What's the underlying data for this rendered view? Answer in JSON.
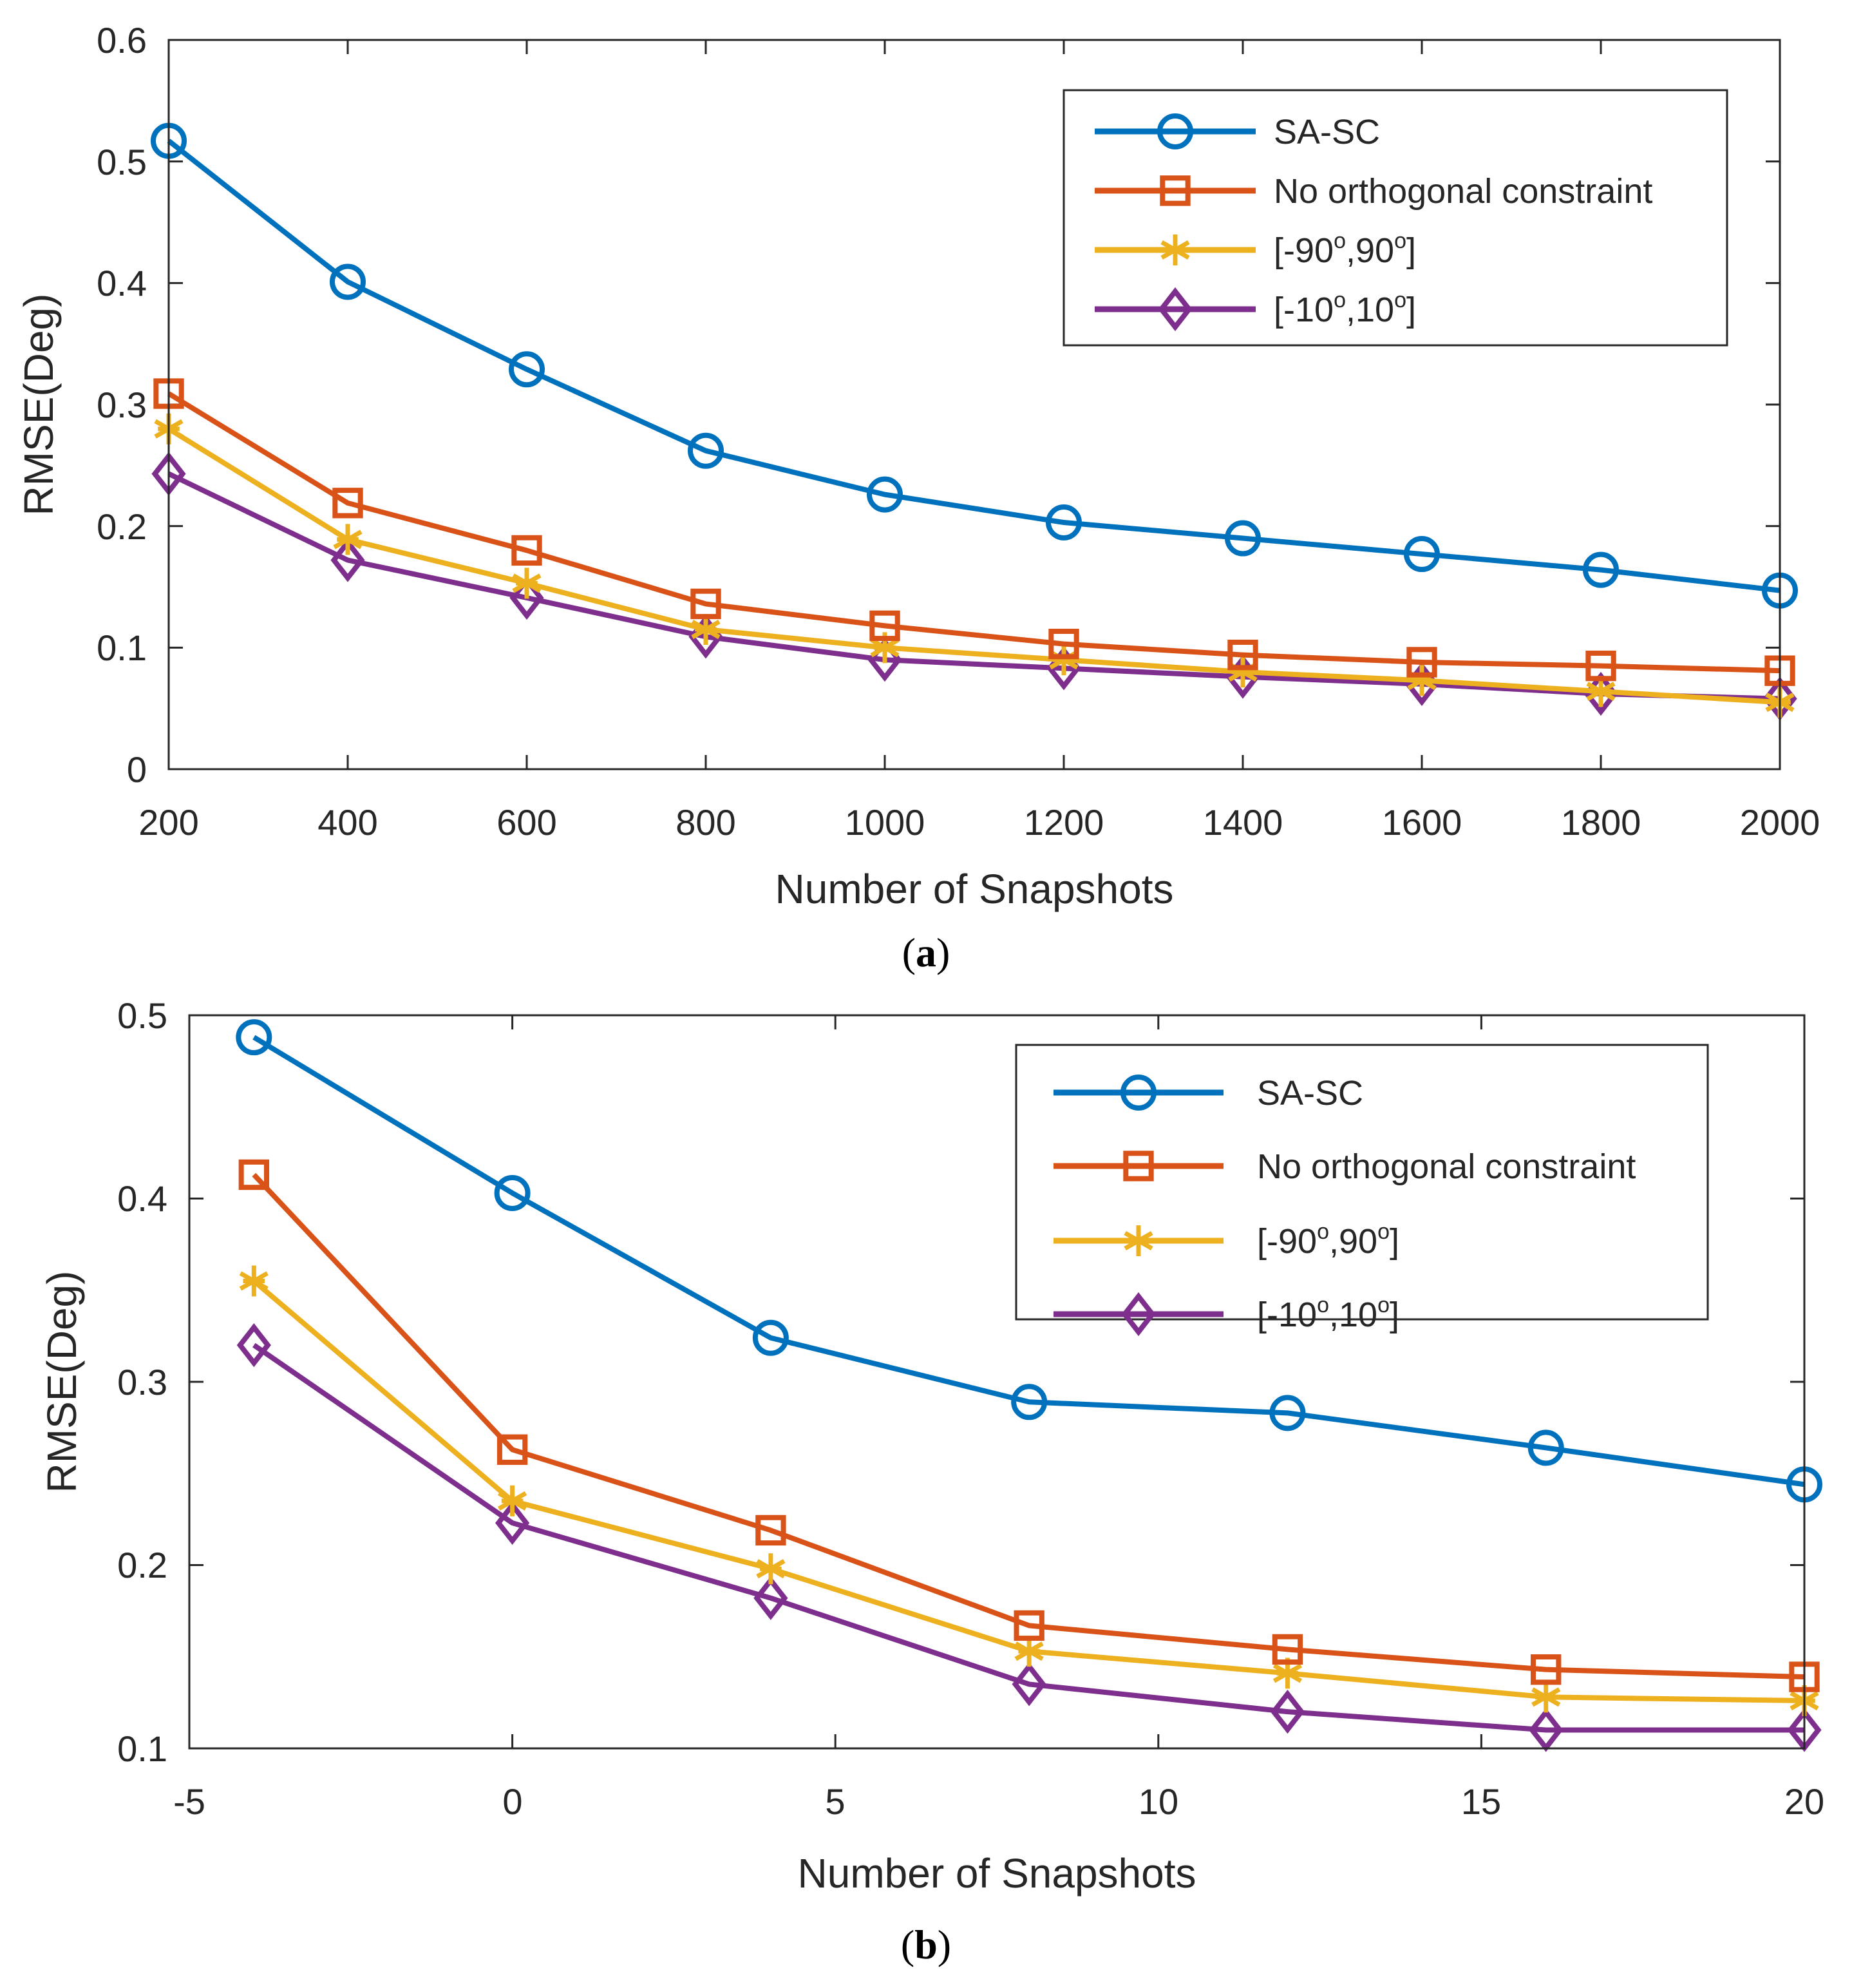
{
  "chart_data": [
    {
      "panel": "a",
      "type": "line",
      "caption": "(a)",
      "caption_letter": "a",
      "xlabel": "Number of Snapshots",
      "ylabel": "RMSE(Deg)",
      "x": [
        200,
        400,
        600,
        800,
        1000,
        1200,
        1400,
        1600,
        1800,
        2000
      ],
      "xlim": [
        200,
        2000
      ],
      "ylim": [
        0,
        0.6
      ],
      "xticks": [
        200,
        400,
        600,
        800,
        1000,
        1200,
        1400,
        1600,
        1800,
        2000
      ],
      "yticks": [
        0,
        0.1,
        0.2,
        0.3,
        0.4,
        0.5,
        0.6
      ],
      "xtick_labels": [
        "200",
        "400",
        "600",
        "800",
        "1000",
        "1200",
        "1400",
        "1600",
        "1800",
        "2000"
      ],
      "ytick_labels": [
        "0",
        "0.1",
        "0.2",
        "0.3",
        "0.4",
        "0.5",
        "0.6"
      ],
      "legend_position": "top-right",
      "series": [
        {
          "name": "SA-SC",
          "legend": {
            "text": "SA-SC"
          },
          "color": "#0072BD",
          "marker": "circle",
          "values": [
            0.517,
            0.401,
            0.329,
            0.262,
            0.226,
            0.203,
            0.19,
            0.177,
            0.164,
            0.147
          ]
        },
        {
          "name": "No orthogonal constraint",
          "legend": {
            "text": "No orthogonal constraint"
          },
          "color": "#D95319",
          "marker": "square",
          "values": [
            0.309,
            0.219,
            0.18,
            0.136,
            0.118,
            0.103,
            0.094,
            0.088,
            0.085,
            0.081
          ]
        },
        {
          "name": "[-90°,90°]",
          "legend": {
            "t1": "[-90",
            "s1": "o",
            "t2": ",90",
            "s2": "o",
            "t3": "]"
          },
          "color": "#EDB120",
          "marker": "asterisk",
          "values": [
            0.28,
            0.189,
            0.153,
            0.115,
            0.1,
            0.09,
            0.08,
            0.073,
            0.064,
            0.055
          ]
        },
        {
          "name": "[-10°,10°]",
          "legend": {
            "t1": "[-10",
            "s1": "o",
            "t2": ",10",
            "s2": "o",
            "t3": "]"
          },
          "color": "#7E2F8E",
          "marker": "diamond",
          "values": [
            0.243,
            0.172,
            0.141,
            0.109,
            0.09,
            0.083,
            0.076,
            0.07,
            0.062,
            0.058
          ]
        }
      ]
    },
    {
      "panel": "b",
      "type": "line",
      "caption": "(b)",
      "caption_letter": "b",
      "xlabel": "Number of Snapshots",
      "ylabel": "RMSE(Deg)",
      "x": [
        -4,
        0,
        4,
        8,
        12,
        16,
        20
      ],
      "xlim": [
        -5,
        20
      ],
      "ylim": [
        0.1,
        0.5
      ],
      "xticks": [
        -5,
        0,
        5,
        10,
        15,
        20
      ],
      "yticks": [
        0.1,
        0.2,
        0.3,
        0.4,
        0.5
      ],
      "xtick_labels": [
        "-5",
        "0",
        "5",
        "10",
        "15",
        "20"
      ],
      "ytick_labels": [
        "0.1",
        "0.2",
        "0.3",
        "0.4",
        "0.5"
      ],
      "legend_position": "top-right",
      "series": [
        {
          "name": "SA-SC",
          "legend": {
            "text": "SA-SC"
          },
          "color": "#0072BD",
          "marker": "circle",
          "values": [
            0.488,
            0.403,
            0.324,
            0.289,
            0.283,
            0.264,
            0.244
          ]
        },
        {
          "name": "No orthogonal constraint",
          "legend": {
            "text": "No orthogonal constraint"
          },
          "color": "#D95319",
          "marker": "square",
          "values": [
            0.413,
            0.263,
            0.219,
            0.167,
            0.154,
            0.143,
            0.139
          ]
        },
        {
          "name": "[-90°,90°]",
          "legend": {
            "t1": "[-90",
            "s1": "o",
            "t2": ",90",
            "s2": "o",
            "t3": "]"
          },
          "color": "#EDB120",
          "marker": "asterisk",
          "values": [
            0.355,
            0.235,
            0.198,
            0.153,
            0.141,
            0.128,
            0.126
          ]
        },
        {
          "name": "[-10°,10°]",
          "legend": {
            "t1": "[-10",
            "s1": "o",
            "t2": ",10",
            "s2": "o",
            "t3": "]"
          },
          "color": "#7E2F8E",
          "marker": "diamond",
          "values": [
            0.32,
            0.223,
            0.182,
            0.135,
            0.12,
            0.11,
            0.11
          ]
        }
      ]
    }
  ]
}
